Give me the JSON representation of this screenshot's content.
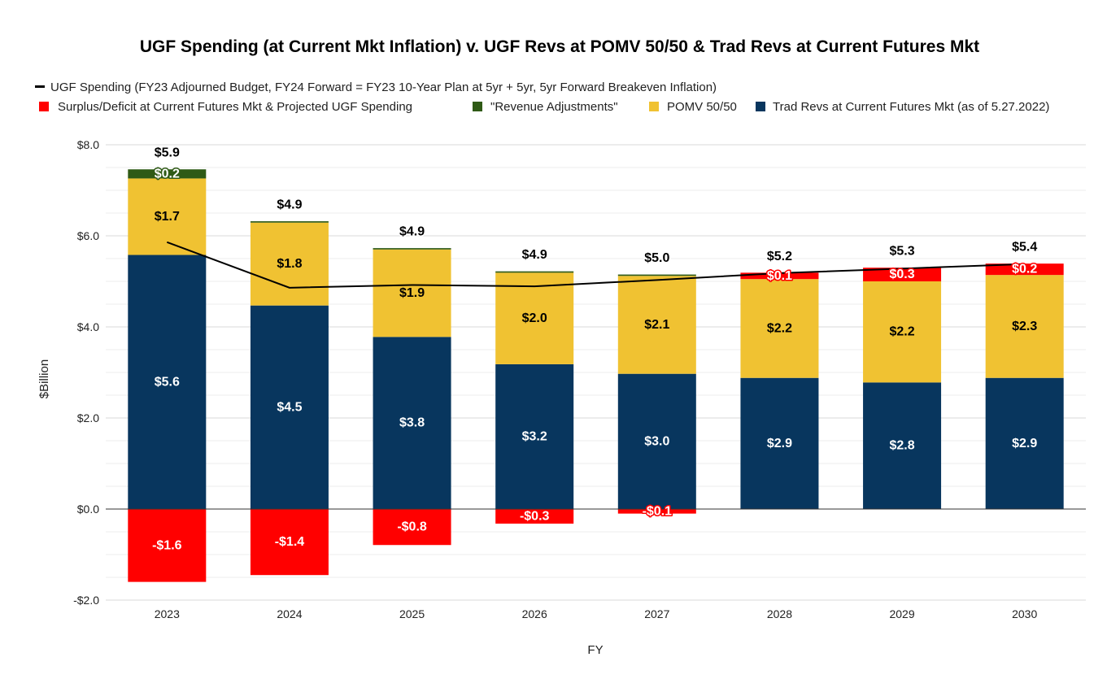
{
  "colors": {
    "trad": "#08365e",
    "pomv": "#f0c232",
    "rev_adj": "#2f5a16",
    "surplus": "#ff0000",
    "spending_line": "#000000",
    "grid_minor": "#eeeeee",
    "grid_major": "#d9d9d9",
    "zero_line": "#333333"
  },
  "chart_data": {
    "type": "bar",
    "stacked": true,
    "title": "UGF Spending (at Current Mkt Inflation) v. UGF Revs at POMV 50/50 & Trad Revs at Current Futures Mkt",
    "xlabel": "FY",
    "ylabel": "$Billion",
    "ylim": [
      -2,
      8
    ],
    "yticks": [
      -2,
      0,
      2,
      4,
      6,
      8
    ],
    "ytick_labels": [
      "-$2.0",
      "$0.0",
      "$2.0",
      "$4.0",
      "$6.0",
      "$8.0"
    ],
    "grid": true,
    "legend_position": "top",
    "categories": [
      "2023",
      "2024",
      "2025",
      "2026",
      "2027",
      "2028",
      "2029",
      "2030"
    ],
    "line_series": {
      "name": "UGF Spending (FY23 Adjourned Budget, FY24 Forward = FY23 10-Year Plan at 5yr + 5yr, 5yr Forward Breakeven Inflation)",
      "values": [
        5.86,
        4.86,
        4.92,
        4.89,
        5.03,
        5.18,
        5.28,
        5.38
      ],
      "labels": [
        "$5.9",
        "$4.9",
        "$4.9",
        "$4.9",
        "$5.0",
        "$5.2",
        "$5.3",
        "$5.4"
      ]
    },
    "series": [
      {
        "key": "trad",
        "name": "Trad Revs at Current Futures Mkt (as of 5.27.2022)",
        "values": [
          5.58,
          4.47,
          3.78,
          3.18,
          2.97,
          2.88,
          2.78,
          2.88
        ],
        "labels": [
          "$5.6",
          "$4.5",
          "$3.8",
          "$3.2",
          "$3.0",
          "$2.9",
          "$2.8",
          "$2.9"
        ]
      },
      {
        "key": "pomv",
        "name": "POMV 50/50",
        "values": [
          1.68,
          1.82,
          1.92,
          2.01,
          2.15,
          2.17,
          2.22,
          2.26
        ],
        "labels": [
          "$1.7",
          "$1.8",
          "$1.9",
          "$2.0",
          "$2.1",
          "$2.2",
          "$2.2",
          "$2.3"
        ]
      },
      {
        "key": "rev_adj",
        "name": "\"Revenue Adjustments\"",
        "values": [
          0.2,
          0.03,
          0.03,
          0.03,
          0.03,
          0.0,
          0.0,
          0.0
        ],
        "labels": [
          "$0.2",
          "",
          "",
          "",
          "",
          "",
          "",
          ""
        ]
      },
      {
        "key": "surplus",
        "name": "Surplus/Deficit at Current Futures Mkt & Projected UGF Spending",
        "values": [
          -1.6,
          -1.45,
          -0.79,
          -0.32,
          -0.1,
          0.14,
          0.3,
          0.25
        ],
        "labels": [
          "-$1.6",
          "-$1.4",
          "-$0.8",
          "-$0.3",
          "-$0.1",
          "$0.1",
          "$0.3",
          "$0.2"
        ]
      }
    ]
  }
}
